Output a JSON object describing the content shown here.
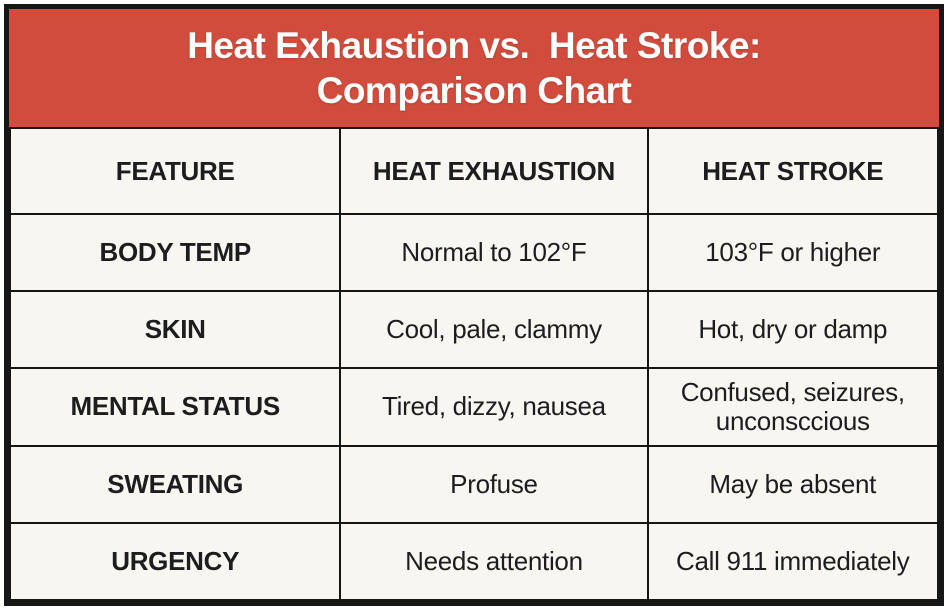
{
  "header": {
    "title_line1": "Heat Exhaustion vs.  Heat Stroke:",
    "title_line2": "Comparison Chart"
  },
  "colors": {
    "header_bg": "#d14c3c",
    "cell_bg": "#f8f6f1",
    "border": "#161616",
    "text": "#1d1d1f",
    "title_text": "#ffffff"
  },
  "chart_data": {
    "type": "table",
    "title": "Heat Exhaustion vs.  Heat Stroke: Comparison Chart",
    "columns": [
      "FEATURE",
      "HEAT EXHAUSTION",
      "HEAT STROKE"
    ],
    "rows": [
      {
        "feature": "BODY TEMP",
        "heat_exhaustion": "Normal to 102°F",
        "heat_stroke": "103°F or higher"
      },
      {
        "feature": "SKIN",
        "heat_exhaustion": "Cool, pale, clammy",
        "heat_stroke": "Hot, dry or damp"
      },
      {
        "feature": "MENTAL STATUS",
        "heat_exhaustion": "Tired, dizzy, nausea",
        "heat_stroke": "Confused, seizures, unconsccious"
      },
      {
        "feature": "SWEATING",
        "heat_exhaustion": "Profuse",
        "heat_stroke": "May be absent"
      },
      {
        "feature": "URGENCY",
        "heat_exhaustion": "Needs attention",
        "heat_stroke": "Call 911 immediately"
      }
    ]
  }
}
